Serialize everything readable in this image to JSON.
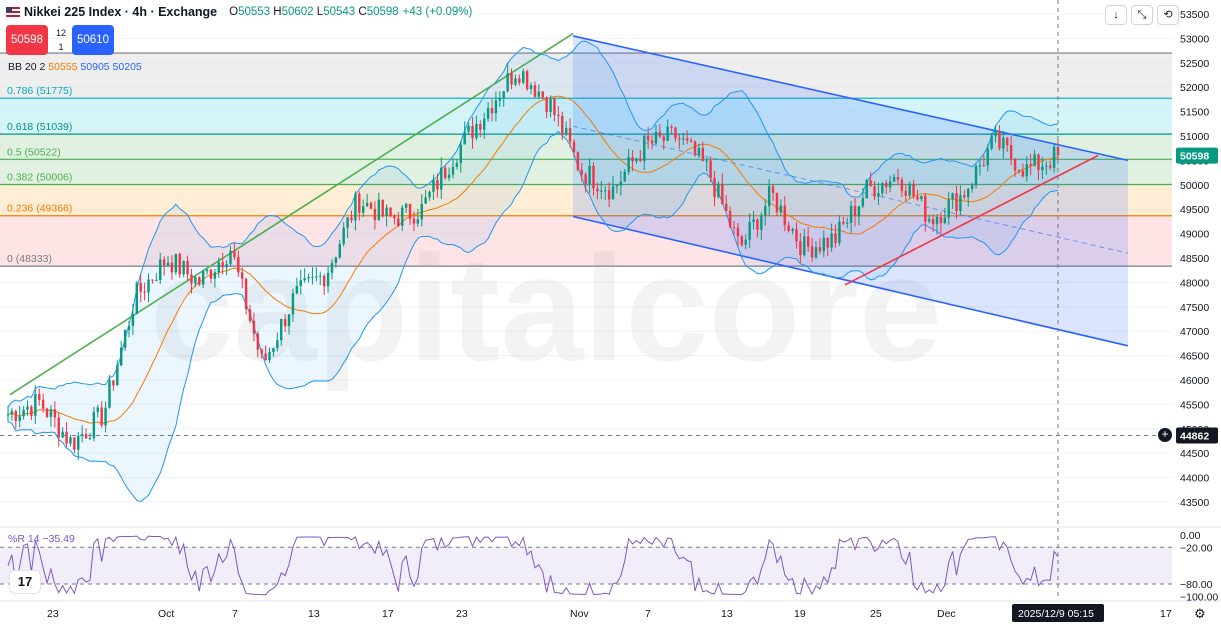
{
  "header": {
    "title": "Nikkei 225 Index · 4h · Exchange",
    "o_label": "O",
    "o": "50553",
    "h_label": "H",
    "h": "50602",
    "l_label": "L",
    "l": "50543",
    "c_label": "C",
    "c": "50598",
    "change": "+43 (+0.09%)"
  },
  "trade": {
    "sell": "50598",
    "buy": "50610",
    "spread_top": "12",
    "spread_bottom": "1"
  },
  "bb_indicator": {
    "label": "BB 20 2",
    "basis": "50555",
    "upper": "50905",
    "lower": "50205"
  },
  "rsi_indicator": {
    "label": "%R 14",
    "value": "−35.49"
  },
  "toolbar": {
    "down_icon": "↓",
    "collapse_icon": "⤡",
    "refresh_icon": "⟲"
  },
  "tv_logo": "17",
  "colors": {
    "up": "#089981",
    "down": "#f23645",
    "channel": "#2962ff",
    "trend_green": "#4caf50",
    "trend_red": "#f23645",
    "bb": "#2196f3",
    "basis": "#f57c00",
    "wr": "#7e57c2"
  },
  "chart_data": [
    {
      "type": "candlestick",
      "title": "Nikkei 225 Index · 4h · Exchange",
      "x_ticks": [
        "23",
        "Oct",
        "7",
        "13",
        "17",
        "23",
        "Nov",
        "7",
        "13",
        "19",
        "25",
        "Dec",
        "17"
      ],
      "x_label_current": "2025/12/9   05:15",
      "y_ticks": [
        53500,
        53000,
        52500,
        52000,
        51500,
        51000,
        50500,
        50000,
        49500,
        49000,
        48500,
        48000,
        47500,
        47000,
        46500,
        46000,
        45500,
        45000,
        44500,
        44000,
        43500
      ],
      "ylim": [
        43100,
        53650
      ],
      "last_price": 50598,
      "crosshair_price": 44862,
      "fib_levels": [
        {
          "label": "0.786 (51775)",
          "value": 51775
        },
        {
          "label": "0.618 (51039)",
          "value": 51039
        },
        {
          "label": "0.5 (50522)",
          "value": 50522
        },
        {
          "label": "0.382 (50006)",
          "value": 50006
        },
        {
          "label": "0.236 (49366)",
          "value": 49366
        },
        {
          "label": "0 (48333)",
          "value": 48333
        }
      ],
      "fib_top_value": 52700,
      "approx_close_path": [
        {
          "x": "Sep 23",
          "y": 45300
        },
        {
          "x": "Sep 26",
          "y": 45550
        },
        {
          "x": "Oct 1",
          "y": 44700
        },
        {
          "x": "Oct 3",
          "y": 45300
        },
        {
          "x": "Oct 6",
          "y": 47700
        },
        {
          "x": "Oct 7",
          "y": 48500
        },
        {
          "x": "Oct 9",
          "y": 48000
        },
        {
          "x": "Oct 10",
          "y": 48700
        },
        {
          "x": "Oct 14",
          "y": 46300
        },
        {
          "x": "Oct 16",
          "y": 47700
        },
        {
          "x": "Oct 17",
          "y": 48200
        },
        {
          "x": "Oct 20",
          "y": 49700
        },
        {
          "x": "Oct 22",
          "y": 49300
        },
        {
          "x": "Oct 24",
          "y": 49500
        },
        {
          "x": "Oct 27",
          "y": 50600
        },
        {
          "x": "Oct 29",
          "y": 51500
        },
        {
          "x": "Oct 31",
          "y": 52400
        },
        {
          "x": "Nov 4",
          "y": 51700
        },
        {
          "x": "Nov 5",
          "y": 50300
        },
        {
          "x": "Nov 7",
          "y": 49900
        },
        {
          "x": "Nov 10",
          "y": 50800
        },
        {
          "x": "Nov 12",
          "y": 51000
        },
        {
          "x": "Nov 14",
          "y": 50300
        },
        {
          "x": "Nov 18",
          "y": 48700
        },
        {
          "x": "Nov 20",
          "y": 49800
        },
        {
          "x": "Nov 21",
          "y": 48700
        },
        {
          "x": "Nov 25",
          "y": 48900
        },
        {
          "x": "Nov 26",
          "y": 49900
        },
        {
          "x": "Nov 28",
          "y": 50200
        },
        {
          "x": "Dec 1",
          "y": 49300
        },
        {
          "x": "Dec 3",
          "y": 49800
        },
        {
          "x": "Dec 4",
          "y": 50900
        },
        {
          "x": "Dec 8",
          "y": 50300
        },
        {
          "x": "Dec 9",
          "y": 50598
        }
      ]
    },
    {
      "type": "line",
      "title": "%R 14",
      "y_ticks": [
        "0.00",
        "−20.00",
        "−80.00",
        "−100.00"
      ],
      "ylim": [
        -100,
        0
      ],
      "band": [
        -80,
        -20
      ],
      "last_value": -35.49
    }
  ]
}
